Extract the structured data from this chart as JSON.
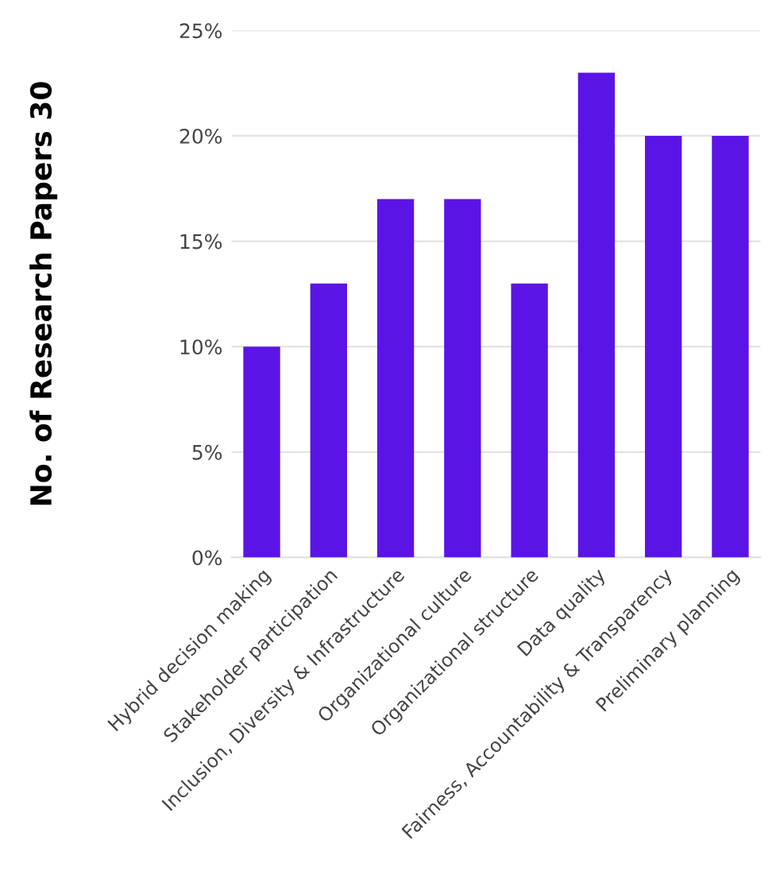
{
  "chart_data": {
    "type": "bar",
    "ylabel": "No. of Research Papers 30",
    "categories": [
      "Hybrid decision making",
      "Stakeholder participation",
      "Inclusion, Diversity & Infrastructure",
      "Organizational culture",
      "Organizational structure",
      "Data quality",
      "Fairness, Accountability & Transparency",
      "Preliminary planning"
    ],
    "values": [
      10,
      13,
      17,
      17,
      13,
      23,
      20,
      20
    ],
    "color": "#5b14e6",
    "ylim": [
      0,
      25
    ],
    "yticks": [
      {
        "value": 0,
        "label": "0%"
      },
      {
        "value": 5,
        "label": "5%"
      },
      {
        "value": 10,
        "label": "10%"
      },
      {
        "value": 15,
        "label": "15%"
      },
      {
        "value": 20,
        "label": "20%"
      },
      {
        "value": 25,
        "label": "25%"
      }
    ],
    "grid": "y"
  }
}
